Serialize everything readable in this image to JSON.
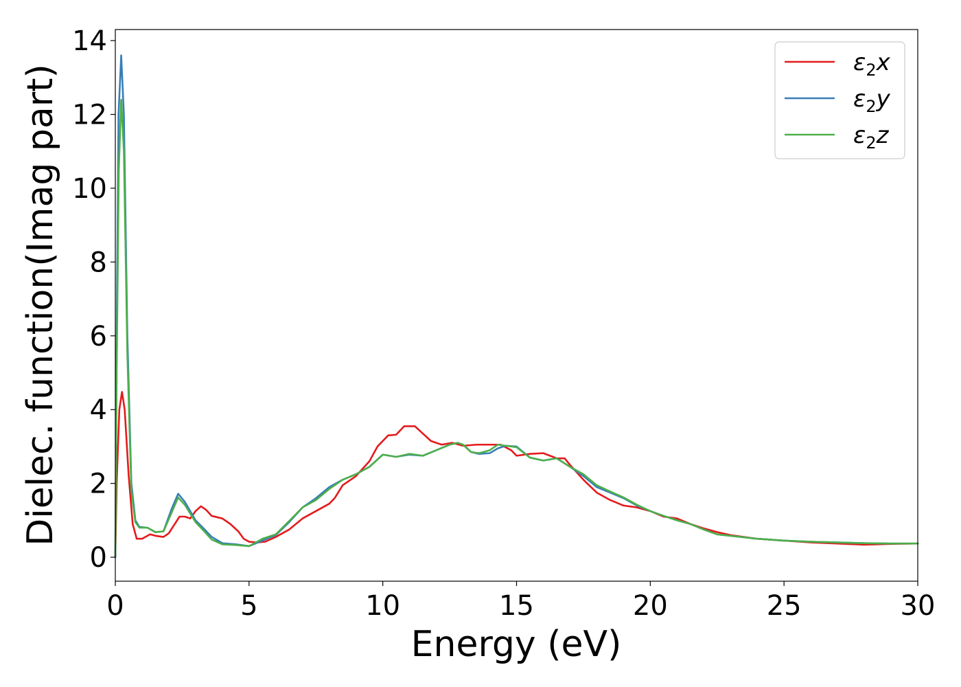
{
  "chart_data": {
    "type": "line",
    "title": "",
    "xlabel": "Energy (eV)",
    "ylabel": "Dielec. function(Imag part)",
    "xlim": [
      0,
      30
    ],
    "ylim": [
      -0.65,
      14.3
    ],
    "xticks": [
      0,
      5,
      10,
      15,
      20,
      25,
      30
    ],
    "yticks": [
      0,
      2,
      4,
      6,
      8,
      10,
      12,
      14
    ],
    "xtick_labels": [
      "0",
      "5",
      "10",
      "15",
      "20",
      "25",
      "30"
    ],
    "ytick_labels": [
      "0",
      "2",
      "4",
      "6",
      "8",
      "10",
      "12",
      "14"
    ],
    "grid": false,
    "legend_position": "top-right",
    "series": [
      {
        "name": "ε₂x",
        "legend_base": "ε",
        "legend_sub": "2",
        "legend_var": "x",
        "color": "#e41a1c",
        "points": [
          [
            0,
            0
          ],
          [
            0.05,
            2
          ],
          [
            0.15,
            4
          ],
          [
            0.25,
            4.48
          ],
          [
            0.35,
            4
          ],
          [
            0.5,
            2.2
          ],
          [
            0.65,
            0.9
          ],
          [
            0.8,
            0.5
          ],
          [
            1,
            0.5
          ],
          [
            1.3,
            0.62
          ],
          [
            1.5,
            0.58
          ],
          [
            1.8,
            0.55
          ],
          [
            2,
            0.65
          ],
          [
            2.4,
            1.1
          ],
          [
            2.6,
            1.1
          ],
          [
            2.8,
            1.05
          ],
          [
            3,
            1.25
          ],
          [
            3.2,
            1.38
          ],
          [
            3.4,
            1.28
          ],
          [
            3.6,
            1.12
          ],
          [
            4,
            1.05
          ],
          [
            4.3,
            0.9
          ],
          [
            4.6,
            0.7
          ],
          [
            4.8,
            0.5
          ],
          [
            5,
            0.42
          ],
          [
            5.3,
            0.4
          ],
          [
            5.6,
            0.42
          ],
          [
            6,
            0.55
          ],
          [
            6.5,
            0.75
          ],
          [
            7,
            1.05
          ],
          [
            7.5,
            1.25
          ],
          [
            8,
            1.45
          ],
          [
            8.2,
            1.6
          ],
          [
            8.5,
            1.95
          ],
          [
            9,
            2.2
          ],
          [
            9.5,
            2.6
          ],
          [
            9.8,
            3
          ],
          [
            10.2,
            3.3
          ],
          [
            10.5,
            3.32
          ],
          [
            10.8,
            3.55
          ],
          [
            11.2,
            3.55
          ],
          [
            11.5,
            3.35
          ],
          [
            11.8,
            3.15
          ],
          [
            12.2,
            3.05
          ],
          [
            12.6,
            3.1
          ],
          [
            13,
            3.02
          ],
          [
            13.5,
            3.05
          ],
          [
            14,
            3.05
          ],
          [
            14.4,
            3.05
          ],
          [
            14.8,
            2.9
          ],
          [
            15,
            2.75
          ],
          [
            15.5,
            2.8
          ],
          [
            16,
            2.82
          ],
          [
            16.5,
            2.68
          ],
          [
            16.8,
            2.68
          ],
          [
            17,
            2.5
          ],
          [
            17.5,
            2.1
          ],
          [
            18,
            1.75
          ],
          [
            18.5,
            1.55
          ],
          [
            19,
            1.4
          ],
          [
            19.5,
            1.35
          ],
          [
            20,
            1.25
          ],
          [
            20.5,
            1.1
          ],
          [
            21,
            1.05
          ],
          [
            21.5,
            0.9
          ],
          [
            22,
            0.78
          ],
          [
            22.5,
            0.68
          ],
          [
            23,
            0.6
          ],
          [
            24,
            0.5
          ],
          [
            25,
            0.45
          ],
          [
            26,
            0.4
          ],
          [
            27,
            0.37
          ],
          [
            28,
            0.34
          ],
          [
            29,
            0.36
          ],
          [
            30,
            0.37
          ]
        ]
      },
      {
        "name": "ε₂y",
        "legend_base": "ε",
        "legend_sub": "2",
        "legend_var": "y",
        "color": "#377eb8",
        "points": [
          [
            0,
            0
          ],
          [
            0.05,
            6
          ],
          [
            0.12,
            12
          ],
          [
            0.22,
            13.6
          ],
          [
            0.32,
            12
          ],
          [
            0.45,
            6
          ],
          [
            0.6,
            2
          ],
          [
            0.75,
            1
          ],
          [
            0.9,
            0.82
          ],
          [
            1.2,
            0.8
          ],
          [
            1.5,
            0.68
          ],
          [
            1.8,
            0.7
          ],
          [
            2.1,
            1.3
          ],
          [
            2.35,
            1.72
          ],
          [
            2.6,
            1.5
          ],
          [
            3,
            1
          ],
          [
            3.3,
            0.78
          ],
          [
            3.6,
            0.55
          ],
          [
            4,
            0.38
          ],
          [
            4.5,
            0.35
          ],
          [
            5,
            0.3
          ],
          [
            5.5,
            0.45
          ],
          [
            6,
            0.6
          ],
          [
            6.5,
            0.95
          ],
          [
            7,
            1.35
          ],
          [
            7.5,
            1.6
          ],
          [
            8,
            1.9
          ],
          [
            8.5,
            2.1
          ],
          [
            9,
            2.25
          ],
          [
            9.5,
            2.45
          ],
          [
            10,
            2.78
          ],
          [
            10.5,
            2.72
          ],
          [
            11,
            2.78
          ],
          [
            11.5,
            2.75
          ],
          [
            12,
            2.9
          ],
          [
            12.5,
            3.05
          ],
          [
            12.8,
            3.1
          ],
          [
            13,
            3.05
          ],
          [
            13.3,
            2.85
          ],
          [
            13.6,
            2.8
          ],
          [
            14,
            2.82
          ],
          [
            14.3,
            2.95
          ],
          [
            14.6,
            3.02
          ],
          [
            15,
            3
          ],
          [
            15.5,
            2.7
          ],
          [
            16,
            2.62
          ],
          [
            16.5,
            2.68
          ],
          [
            17,
            2.45
          ],
          [
            17.5,
            2.2
          ],
          [
            18,
            1.9
          ],
          [
            18.5,
            1.75
          ],
          [
            19,
            1.6
          ],
          [
            19.5,
            1.4
          ],
          [
            20,
            1.25
          ],
          [
            20.5,
            1.12
          ],
          [
            21,
            1
          ],
          [
            21.5,
            0.9
          ],
          [
            22,
            0.75
          ],
          [
            22.5,
            0.62
          ],
          [
            23,
            0.58
          ],
          [
            24,
            0.5
          ],
          [
            25,
            0.45
          ],
          [
            26,
            0.42
          ],
          [
            27,
            0.4
          ],
          [
            28,
            0.38
          ],
          [
            29,
            0.37
          ],
          [
            30,
            0.37
          ]
        ]
      },
      {
        "name": "ε₂z",
        "legend_base": "ε",
        "legend_sub": "2",
        "legend_var": "z",
        "color": "#4daf4a",
        "points": [
          [
            0,
            0
          ],
          [
            0.05,
            5
          ],
          [
            0.13,
            10.5
          ],
          [
            0.22,
            12.4
          ],
          [
            0.32,
            11
          ],
          [
            0.45,
            5.5
          ],
          [
            0.6,
            1.8
          ],
          [
            0.75,
            0.95
          ],
          [
            0.9,
            0.8
          ],
          [
            1.2,
            0.8
          ],
          [
            1.5,
            0.68
          ],
          [
            1.8,
            0.7
          ],
          [
            2.1,
            1.2
          ],
          [
            2.35,
            1.62
          ],
          [
            2.6,
            1.42
          ],
          [
            3,
            0.95
          ],
          [
            3.3,
            0.72
          ],
          [
            3.6,
            0.48
          ],
          [
            4,
            0.35
          ],
          [
            4.5,
            0.33
          ],
          [
            5,
            0.3
          ],
          [
            5.5,
            0.5
          ],
          [
            6,
            0.62
          ],
          [
            6.5,
            0.98
          ],
          [
            7,
            1.35
          ],
          [
            7.5,
            1.55
          ],
          [
            8,
            1.85
          ],
          [
            8.5,
            2.1
          ],
          [
            9,
            2.25
          ],
          [
            9.5,
            2.45
          ],
          [
            10,
            2.78
          ],
          [
            10.5,
            2.72
          ],
          [
            11,
            2.8
          ],
          [
            11.5,
            2.75
          ],
          [
            12,
            2.9
          ],
          [
            12.5,
            3.05
          ],
          [
            12.8,
            3.1
          ],
          [
            13,
            3.05
          ],
          [
            13.3,
            2.85
          ],
          [
            13.6,
            2.82
          ],
          [
            14,
            2.9
          ],
          [
            14.3,
            3.05
          ],
          [
            14.6,
            3.02
          ],
          [
            15,
            2.98
          ],
          [
            15.5,
            2.7
          ],
          [
            16,
            2.62
          ],
          [
            16.5,
            2.68
          ],
          [
            17,
            2.45
          ],
          [
            17.5,
            2.25
          ],
          [
            18,
            1.95
          ],
          [
            18.5,
            1.78
          ],
          [
            19,
            1.62
          ],
          [
            19.5,
            1.42
          ],
          [
            20,
            1.25
          ],
          [
            20.5,
            1.12
          ],
          [
            21,
            1
          ],
          [
            21.5,
            0.9
          ],
          [
            22,
            0.75
          ],
          [
            22.5,
            0.62
          ],
          [
            23,
            0.58
          ],
          [
            24,
            0.5
          ],
          [
            25,
            0.45
          ],
          [
            26,
            0.42
          ],
          [
            27,
            0.4
          ],
          [
            28,
            0.38
          ],
          [
            29,
            0.37
          ],
          [
            30,
            0.37
          ]
        ]
      }
    ]
  }
}
